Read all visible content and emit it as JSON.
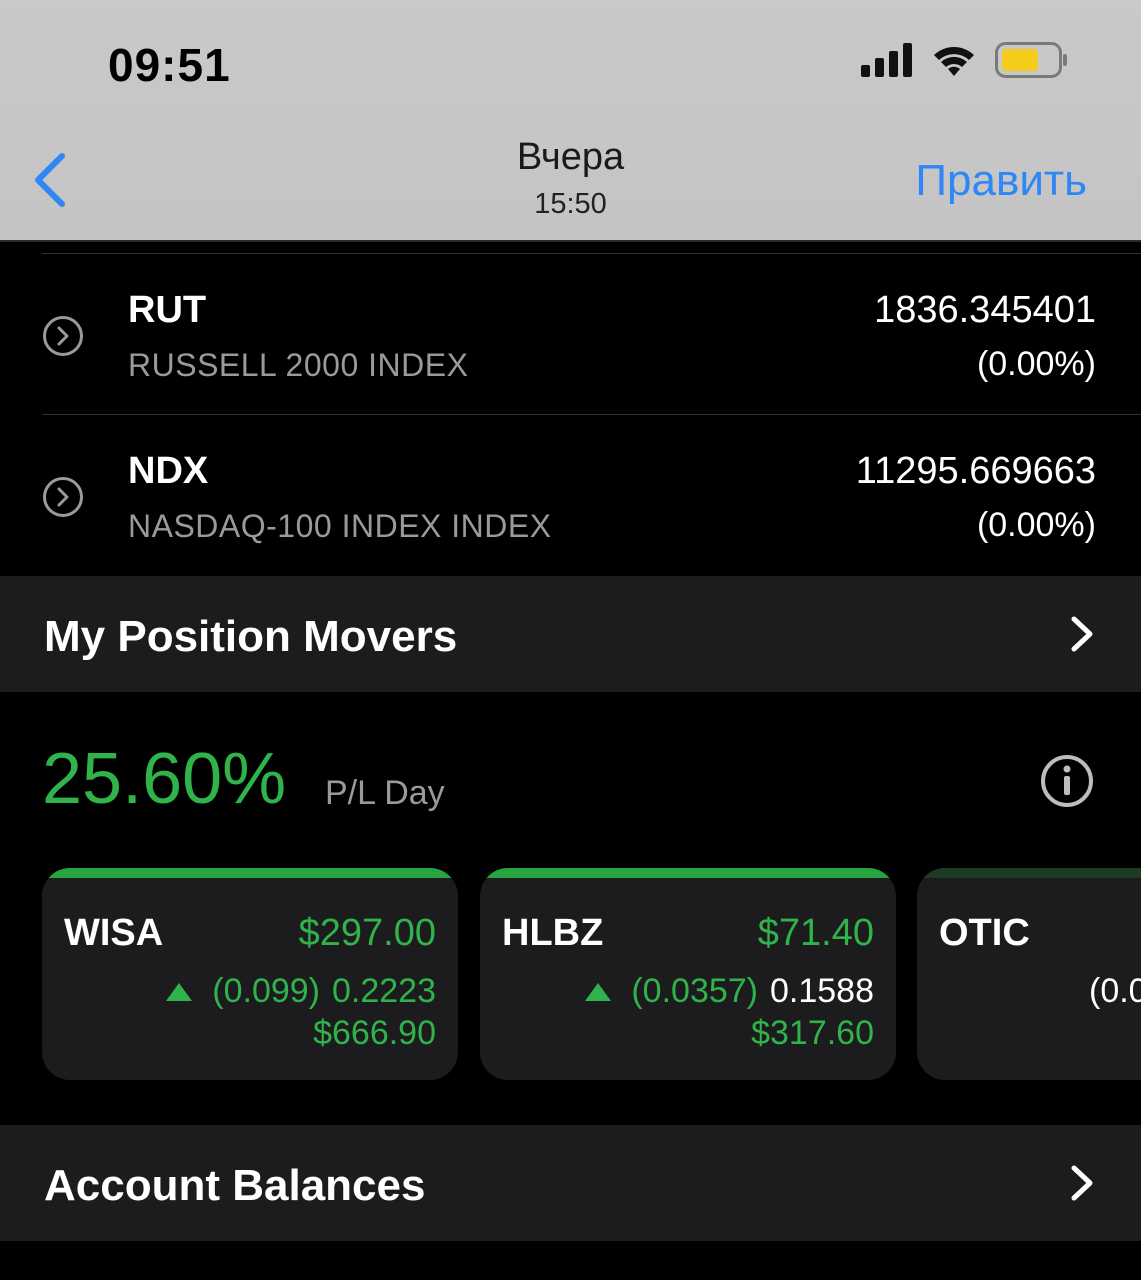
{
  "status_bar": {
    "time": "09:51",
    "icons": [
      "cellular-signal-icon",
      "wifi-icon",
      "battery-icon"
    ],
    "battery_color": "#f5cc1c"
  },
  "nav": {
    "title": "Вчера",
    "subtitle": "15:50",
    "edit_label": "Править",
    "accent_color": "#2f86f6"
  },
  "indices": [
    {
      "symbol": "RUT",
      "name": "RUSSELL 2000 INDEX",
      "value": "1836.345401",
      "change": "(0.00%)"
    },
    {
      "symbol": "NDX",
      "name": "NASDAQ-100 INDEX INDEX",
      "value": "11295.669663",
      "change": "(0.00%)"
    }
  ],
  "movers": {
    "title": "My Position Movers",
    "pl_percent": "25.60%",
    "pl_label": "P/L Day",
    "positive_color": "#2fb34a",
    "cards": [
      {
        "symbol": "WISA",
        "price": "$297.00",
        "change": "(0.099)",
        "ratio": "0.2223",
        "value": "$666.90"
      },
      {
        "symbol": "HLBZ",
        "price": "$71.40",
        "change": "(0.0357)",
        "ratio": "0.1588",
        "value": "$317.60"
      },
      {
        "symbol": "OTIC",
        "partial_change": "(0.0"
      }
    ]
  },
  "balances": {
    "title": "Account Balances"
  }
}
